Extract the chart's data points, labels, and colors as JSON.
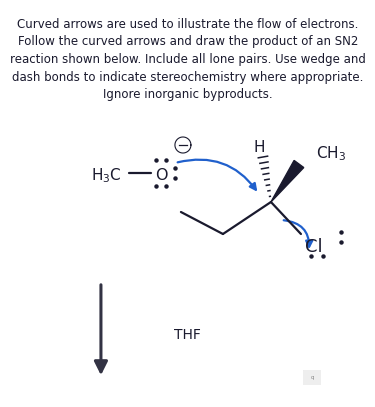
{
  "title_text": "Curved arrows are used to illustrate the flow of electrons.\nFollow the curved arrows and draw the product of an SN2\nreaction shown below. Include all lone pairs. Use wedge and\ndash bonds to indicate stereochemistry where appropriate.\nIgnore inorganic byproducts.",
  "title_fontsize": 8.5,
  "background_color": "#ffffff",
  "thf_label": "THF",
  "thf_fontsize": 10,
  "blue": "#2060cc",
  "black": "#1a1a2e",
  "arrow_gray": "#333344"
}
